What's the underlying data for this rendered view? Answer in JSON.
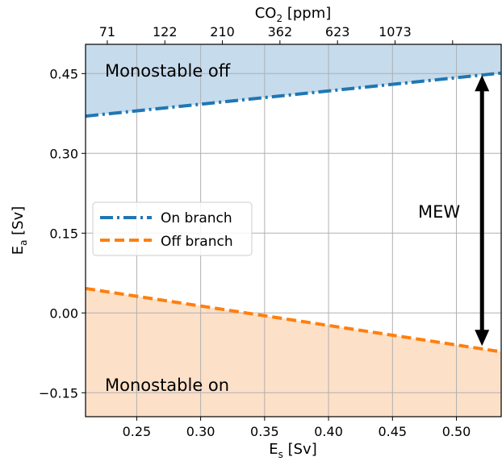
{
  "chart_data": {
    "type": "line",
    "xlabel_base": "E",
    "xlabel_sub": "s",
    "xlabel_rest": " [Sv]",
    "ylabel_base": "E",
    "ylabel_sub": "a",
    "ylabel_rest": " [Sv]",
    "top_xlabel_base": "CO",
    "top_xlabel_sub": "2",
    "top_xlabel_rest": " [ppm]",
    "xlim": [
      0.21,
      0.535
    ],
    "ylim": [
      -0.195,
      0.505
    ],
    "xticks": [
      0.25,
      0.3,
      0.35,
      0.4,
      0.45,
      0.5
    ],
    "xtick_labels": [
      "0.25",
      "0.30",
      "0.35",
      "0.40",
      "0.45",
      "0.50"
    ],
    "yticks": [
      -0.15,
      0.0,
      0.15,
      0.3,
      0.45
    ],
    "ytick_labels": [
      "−0.15",
      "0.00",
      "0.15",
      "0.30",
      "0.45"
    ],
    "top_ticks": [
      0.227,
      0.272,
      0.317,
      0.362,
      0.407,
      0.452,
      0.497
    ],
    "top_tick_labels": [
      "71",
      "122",
      "210",
      "362",
      "623",
      "1073",
      ""
    ],
    "grid": true,
    "series": [
      {
        "name": "On branch",
        "color": "#1f77b4",
        "style": "dashdot",
        "x": [
          0.21,
          0.535
        ],
        "y": [
          0.37,
          0.451
        ]
      },
      {
        "name": "Off branch",
        "color": "#ff7f0e",
        "style": "dashed",
        "x": [
          0.21,
          0.535
        ],
        "y": [
          0.046,
          -0.073
        ]
      }
    ],
    "regions": [
      {
        "label": "Monostable off",
        "color": "#c6dbec",
        "between": "on_branch_and_top"
      },
      {
        "label": "Monostable on",
        "color": "#fde0c8",
        "between": "off_branch_and_bottom"
      }
    ],
    "annotation": {
      "label": "MEW",
      "x": 0.52,
      "y_top": 0.447,
      "y_bottom": -0.062
    },
    "legend_placement": "center-left"
  }
}
